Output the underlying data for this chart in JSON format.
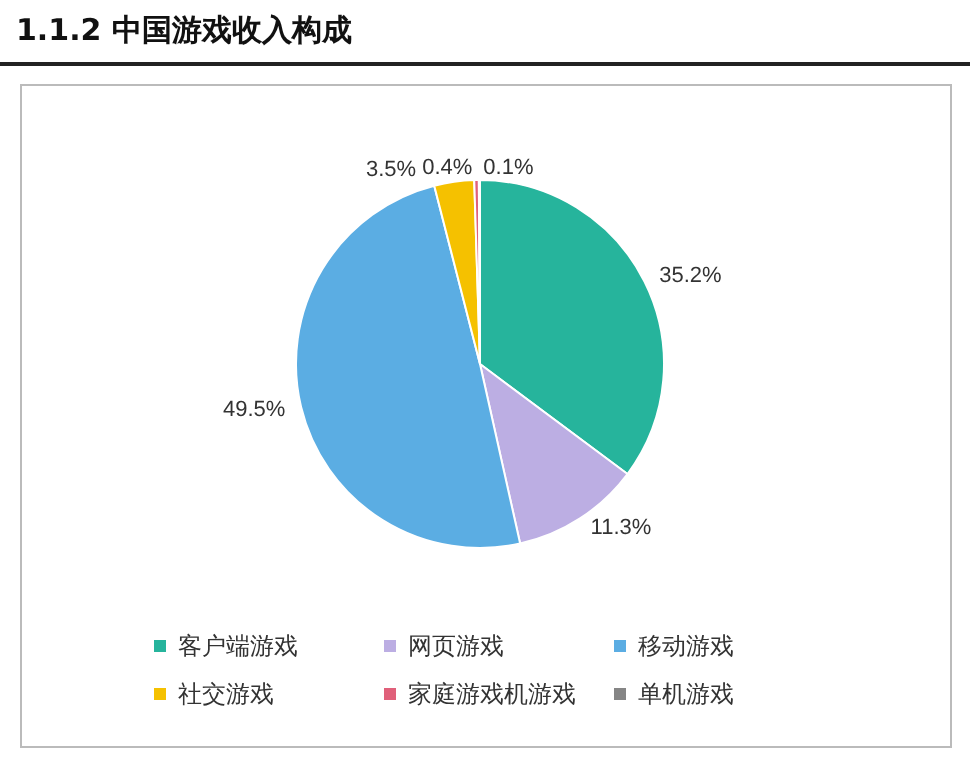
{
  "chart_data": {
    "type": "pie",
    "title": "1.1.2 中国游戏收入构成",
    "categories": [
      "客户端游戏",
      "网页游戏",
      "移动游戏",
      "社交游戏",
      "家庭游戏机游戏",
      "单机游戏"
    ],
    "values": [
      35.2,
      11.3,
      49.5,
      3.5,
      0.4,
      0.1
    ],
    "value_labels": [
      "35.2%",
      "11.3%",
      "49.5%",
      "3.5%",
      "0.4%",
      "0.1%"
    ],
    "colors": [
      "#26b49c",
      "#bcaee3",
      "#5badE3",
      "#f5c100",
      "#e0607a",
      "#858585"
    ],
    "legend": "bottom"
  }
}
